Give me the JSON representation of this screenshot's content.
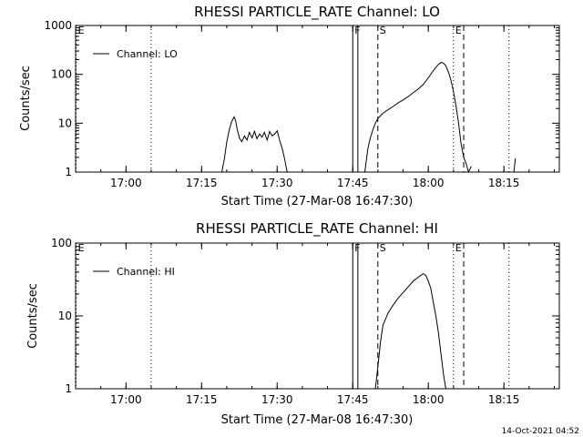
{
  "chart_data": [
    {
      "type": "line",
      "title": "RHESSI PARTICLE_RATE Channel: LO",
      "xlabel": "Start Time (27-Mar-08 16:47:30)",
      "ylabel": "Counts/sec",
      "yscale": "log",
      "ylim": [
        1,
        1000
      ],
      "xlim": [
        16.8333,
        18.4333
      ],
      "x_ticks": [
        17.0,
        17.25,
        17.5,
        17.75,
        18.0,
        18.25
      ],
      "x_tick_labels": [
        "17:00",
        "17:15",
        "17:30",
        "17:45",
        "18:00",
        "18:15"
      ],
      "y_ticks": [
        1,
        10,
        100,
        1000
      ],
      "y_tick_labels": [
        "1",
        "10",
        "100",
        "1000"
      ],
      "legend": "top-left",
      "series": [
        {
          "name": "Channel: LO",
          "segments": [
            {
              "x": [
                17.317,
                17.325,
                17.333,
                17.342,
                17.35,
                17.358,
                17.363,
                17.367,
                17.375,
                17.383,
                17.392,
                17.4,
                17.408,
                17.417,
                17.425,
                17.433,
                17.442,
                17.45,
                17.458,
                17.467,
                17.475,
                17.483,
                17.492,
                17.5,
                17.508,
                17.517,
                17.525,
                17.533
              ],
              "y": [
                1.0,
                1.8,
                4.0,
                7.5,
                11.0,
                13.5,
                11.0,
                8.0,
                5.0,
                4.2,
                5.5,
                4.5,
                6.5,
                5.0,
                6.8,
                4.8,
                6.0,
                5.2,
                6.5,
                4.5,
                6.8,
                5.5,
                6.0,
                7.0,
                4.5,
                3.0,
                1.8,
                1.0
              ]
            },
            {
              "x": [
                17.79,
                17.8,
                17.808,
                17.817,
                17.825,
                17.833,
                17.85,
                17.867,
                17.883,
                17.9,
                17.917,
                17.933,
                17.95,
                17.967,
                17.983,
                18.0,
                18.017,
                18.033,
                18.042,
                18.05,
                18.058,
                18.067,
                18.075,
                18.083,
                18.092,
                18.1,
                18.108,
                18.117,
                18.125,
                18.133,
                18.142
              ],
              "y": [
                1.0,
                3.0,
                5.0,
                7.5,
                10.0,
                12.5,
                16.0,
                19.0,
                22.0,
                26.0,
                30.0,
                35.0,
                42.0,
                50.0,
                62.0,
                85.0,
                120.0,
                160.0,
                175.0,
                170.0,
                150.0,
                110.0,
                75.0,
                45.0,
                22.0,
                10.0,
                4.0,
                2.0,
                1.5,
                1.0,
                1.3
              ]
            },
            {
              "x": [
                18.283,
                18.288
              ],
              "y": [
                1.0,
                1.9
              ]
            }
          ]
        }
      ],
      "markers": [
        {
          "label": "E",
          "x": 16.835,
          "style": "dotted"
        },
        {
          "x": 17.083,
          "style": "dotted"
        },
        {
          "label": "F",
          "x": 17.75,
          "style": "solid"
        },
        {
          "x": 17.767,
          "style": "solid"
        },
        {
          "label": "S",
          "x": 17.833,
          "style": "dashed"
        },
        {
          "label": "E",
          "x": 18.083,
          "style": "dotted"
        },
        {
          "x": 18.117,
          "style": "dashed"
        },
        {
          "x": 18.267,
          "style": "dotted"
        }
      ]
    },
    {
      "type": "line",
      "title": "RHESSI PARTICLE_RATE Channel: HI",
      "xlabel": "Start Time (27-Mar-08 16:47:30)",
      "ylabel": "Counts/sec",
      "yscale": "log",
      "ylim": [
        1,
        100
      ],
      "xlim": [
        16.8333,
        18.4333
      ],
      "x_ticks": [
        17.0,
        17.25,
        17.5,
        17.75,
        18.0,
        18.25
      ],
      "x_tick_labels": [
        "17:00",
        "17:15",
        "17:30",
        "17:45",
        "18:00",
        "18:15"
      ],
      "y_ticks": [
        1,
        10,
        100
      ],
      "y_tick_labels": [
        "1",
        "10",
        "100"
      ],
      "legend": "top-left",
      "series": [
        {
          "name": "Channel: HI",
          "segments": [
            {
              "x": [
                17.825,
                17.833,
                17.842,
                17.85,
                17.867,
                17.883,
                17.9,
                17.917,
                17.933,
                17.95,
                17.967,
                17.983,
                17.992,
                18.0,
                18.008,
                18.017,
                18.025,
                18.033,
                18.042,
                18.05,
                18.058
              ],
              "y": [
                1.0,
                2.0,
                4.5,
                7.5,
                11.0,
                14.0,
                17.5,
                21.0,
                25.0,
                30.0,
                34.0,
                38.0,
                36.0,
                30.0,
                24.0,
                15.0,
                10.0,
                6.0,
                3.0,
                1.6,
                1.0
              ]
            }
          ]
        }
      ],
      "markers": [
        {
          "label": "E",
          "x": 16.835,
          "style": "dotted"
        },
        {
          "x": 17.083,
          "style": "dotted"
        },
        {
          "label": "F",
          "x": 17.75,
          "style": "solid"
        },
        {
          "x": 17.767,
          "style": "solid"
        },
        {
          "label": "S",
          "x": 17.833,
          "style": "dashed"
        },
        {
          "label": "E",
          "x": 18.083,
          "style": "dotted"
        },
        {
          "x": 18.117,
          "style": "dashed"
        },
        {
          "x": 18.267,
          "style": "dotted"
        }
      ]
    }
  ],
  "footer": {
    "timestamp": "14-Oct-2021 04:52"
  }
}
